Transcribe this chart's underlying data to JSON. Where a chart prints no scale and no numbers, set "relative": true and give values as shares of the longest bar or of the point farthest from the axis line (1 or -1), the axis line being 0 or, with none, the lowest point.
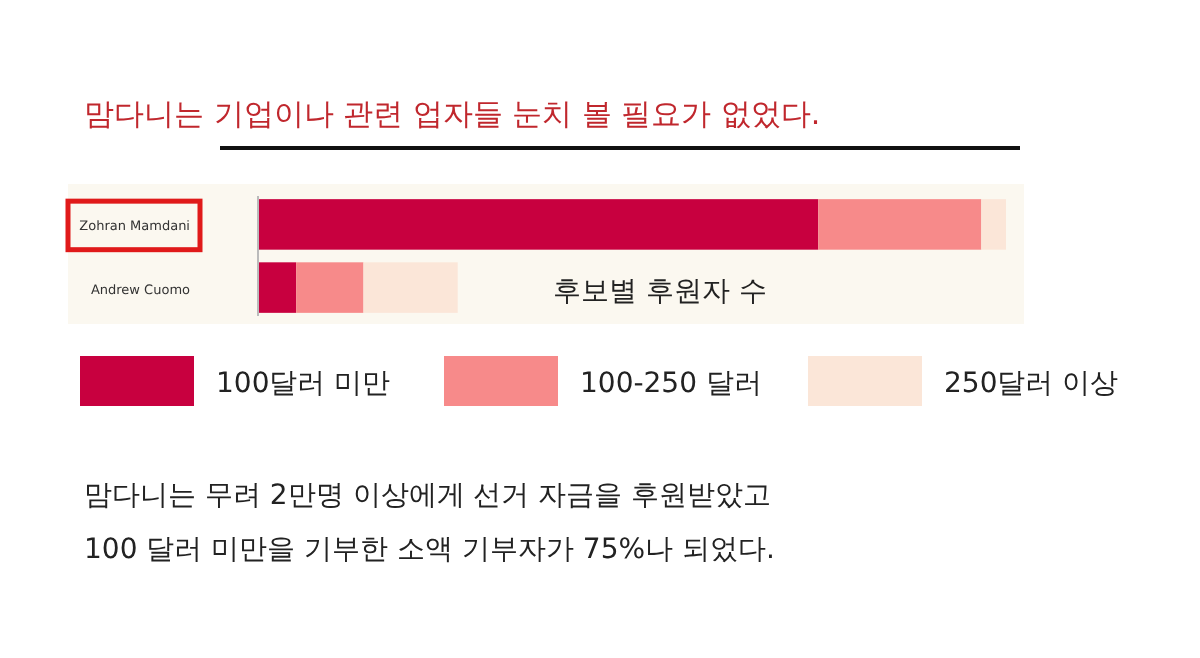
{
  "chart_data": {
    "type": "bar",
    "orientation": "horizontal",
    "stacked": true,
    "relative": true,
    "title": "맘다니는 기업이나 관련 업자들 눈치 볼 필요가 없었다.",
    "subtitle": "후보별 후원자 수",
    "categories": [
      "Zohran Mamdani",
      "Andrew Cuomo"
    ],
    "series": [
      {
        "name": "100달러 미만",
        "color": "#c8003f",
        "values": [
          0.749,
          0.051
        ]
      },
      {
        "name": "100-250 달러",
        "color": "#f78a8a",
        "values": [
          0.218,
          0.09
        ]
      },
      {
        "name": "250달러 이상",
        "color": "#fbe6d8",
        "values": [
          0.033,
          0.126
        ]
      }
    ],
    "legend": "bottom",
    "annotations": [
      "맘다니는 무려 2만명 이상에게 선거 자금을 후원받았고",
      "100 달러 미만을 기부한 소액 기부자가 75%나 되었다."
    ]
  }
}
